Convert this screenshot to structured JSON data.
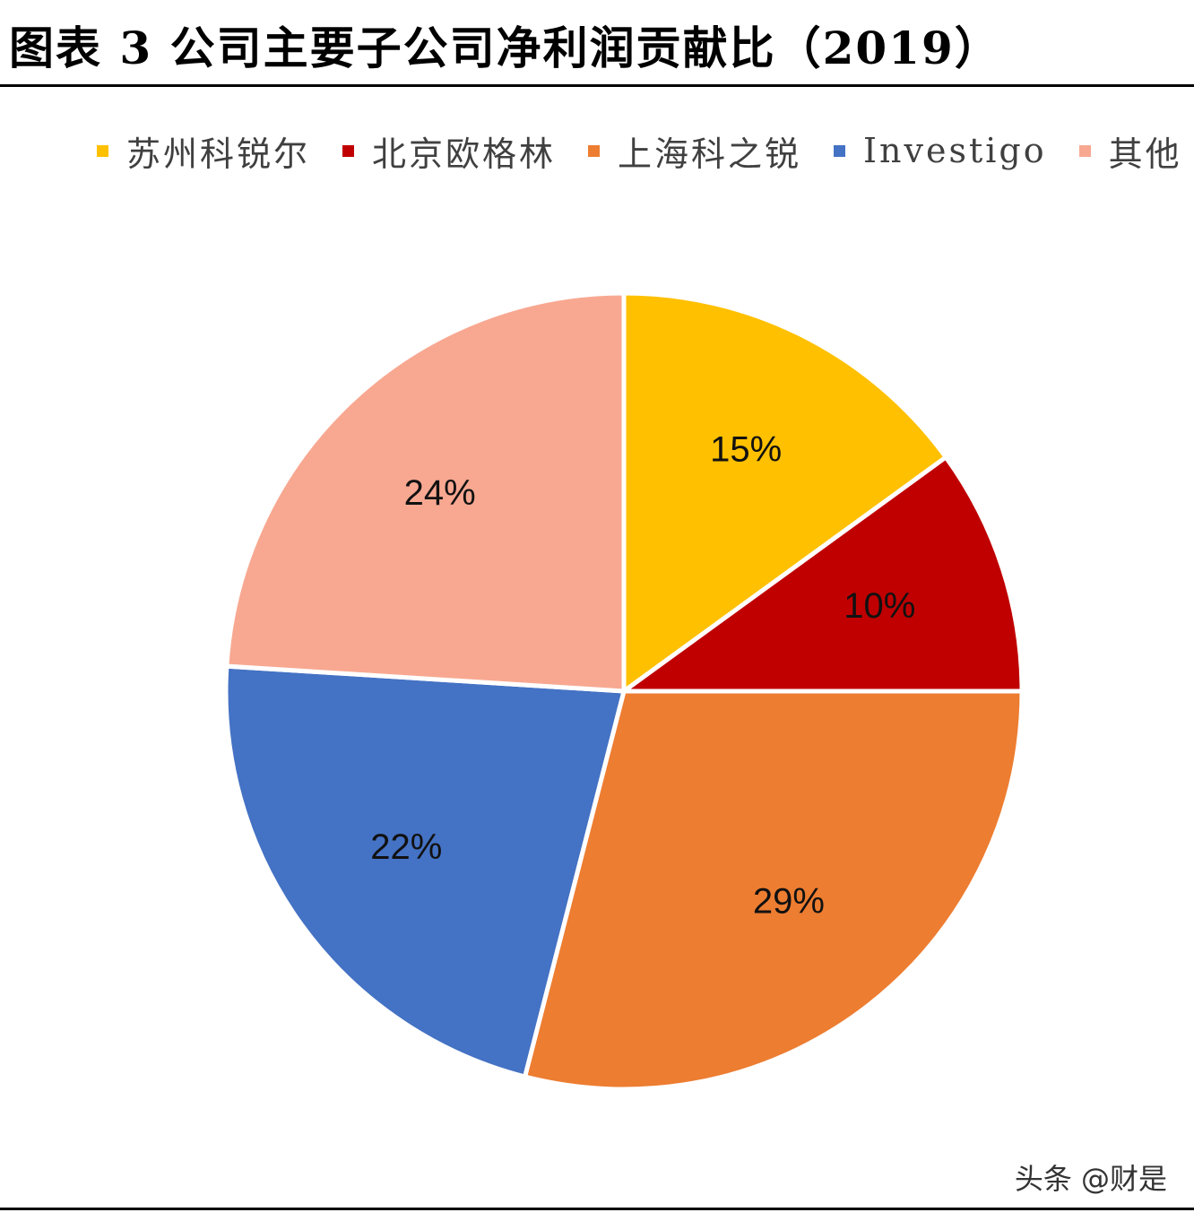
{
  "title": "图表 3  公司主要子公司净利润贡献比（2019）",
  "watermark": "头条 @财是",
  "chart_data": {
    "type": "pie",
    "title": "图表 3  公司主要子公司净利润贡献比（2019）",
    "legend_position": "top",
    "categories": [
      "苏州科锐尔",
      "北京欧格林",
      "上海科之锐",
      "Investigo",
      "其他"
    ],
    "values": [
      15,
      10,
      29,
      22,
      24
    ],
    "labels": [
      "15%",
      "10%",
      "29%",
      "22%",
      "24%"
    ],
    "colors": [
      "#FFC000",
      "#C00000",
      "#ED7D31",
      "#4472C4",
      "#F8A891"
    ],
    "start_angle_deg": 0,
    "direction": "clockwise"
  }
}
